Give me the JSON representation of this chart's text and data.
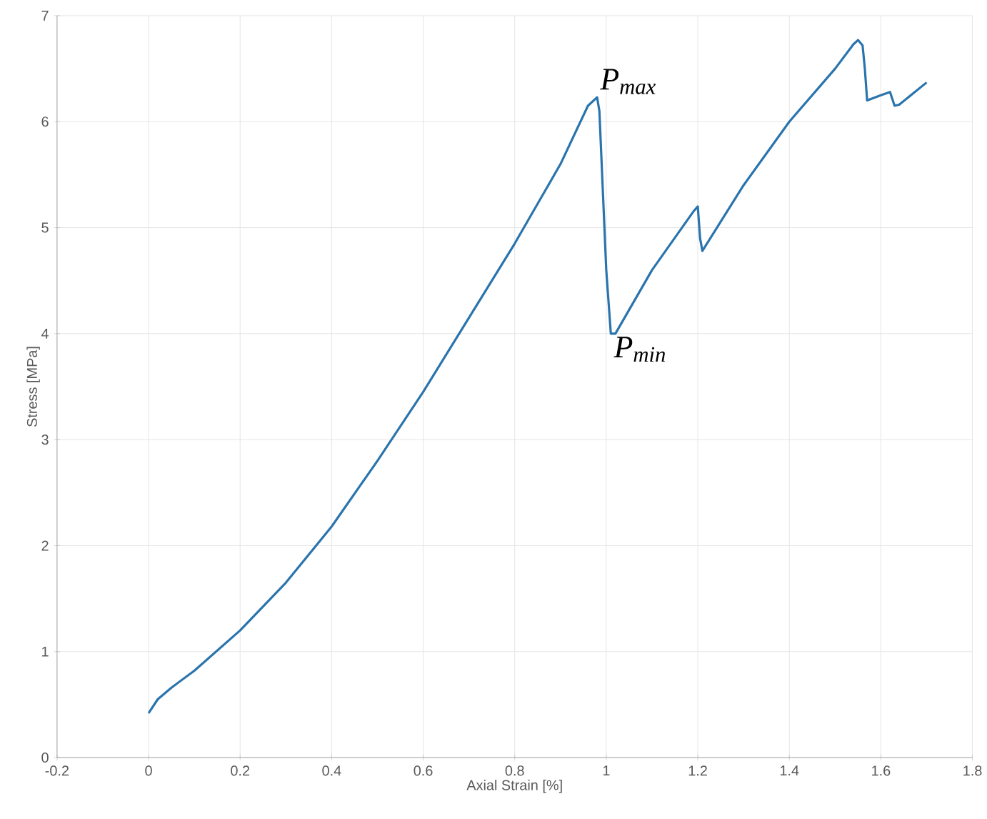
{
  "chart_data": {
    "type": "line",
    "xlabel": "Axial Strain [%]",
    "ylabel": "Stress [MPa]",
    "x": [
      0,
      0.02,
      0.05,
      0.1,
      0.2,
      0.3,
      0.4,
      0.5,
      0.6,
      0.7,
      0.8,
      0.9,
      0.96,
      0.98,
      0.985,
      1.0,
      1.01,
      1.02,
      1.1,
      1.19,
      1.2,
      1.205,
      1.21,
      1.3,
      1.4,
      1.5,
      1.54,
      1.55,
      1.56,
      1.565,
      1.57,
      1.6,
      1.62,
      1.63,
      1.64,
      1.7
    ],
    "series": [
      {
        "color": "#2a74ad",
        "values": [
          0.42,
          0.55,
          0.66,
          0.82,
          1.2,
          1.65,
          2.18,
          2.8,
          3.45,
          4.15,
          4.85,
          5.6,
          6.15,
          6.23,
          6.1,
          4.6,
          4.0,
          4.0,
          4.6,
          5.15,
          5.2,
          4.9,
          4.78,
          5.4,
          6.0,
          6.5,
          6.73,
          6.77,
          6.72,
          6.5,
          6.2,
          6.25,
          6.28,
          6.15,
          6.16,
          6.37
        ]
      }
    ],
    "annotations": [
      {
        "text": "P$_{max}$",
        "x": 0.98,
        "y": 6.23
      },
      {
        "text": "P$_{min}$",
        "x": 1.01,
        "y": 4.0
      }
    ],
    "xlim": [
      -0.2,
      1.8
    ],
    "ylim": [
      0,
      7
    ],
    "xticks": [
      -0.2,
      0,
      0.2,
      0.4,
      0.6,
      0.8,
      1,
      1.2,
      1.4,
      1.6,
      1.8
    ],
    "yticks": [
      0,
      1,
      2,
      3,
      4,
      5,
      6,
      7
    ],
    "grid": true,
    "marker": "none",
    "line_style": "solid"
  }
}
